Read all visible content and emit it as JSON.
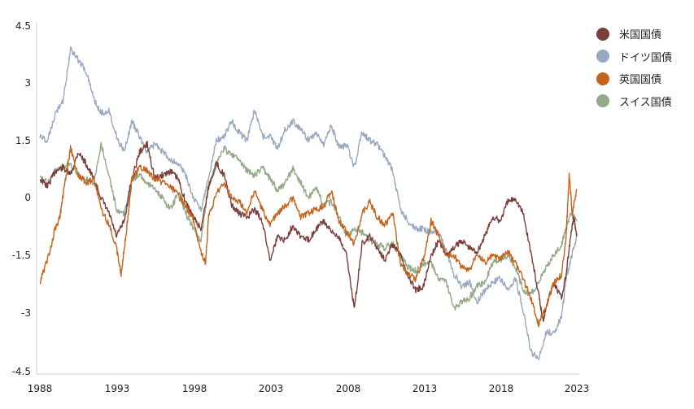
{
  "chart_data": {
    "type": "line",
    "x_ticks": [
      "1988",
      "1993",
      "1998",
      "2003",
      "2008",
      "2013",
      "2018",
      "2023"
    ],
    "y_ticks": [
      "4.5",
      "3",
      "1.5",
      "0",
      "-1.5",
      "-3",
      "-4.5"
    ],
    "xlim": [
      1988,
      2023
    ],
    "ylim": [
      -4.5,
      4.5
    ],
    "grid": false,
    "legend_position": "top-right",
    "series": [
      {
        "name": "米国国債",
        "color": "#7b3f3a",
        "points": [
          [
            1988.0,
            0.5
          ],
          [
            1988.5,
            0.3
          ],
          [
            1989.0,
            0.7
          ],
          [
            1989.5,
            0.8
          ],
          [
            1990.0,
            0.6
          ],
          [
            1990.5,
            1.2
          ],
          [
            1991.0,
            0.9
          ],
          [
            1991.5,
            0.5
          ],
          [
            1992.0,
            0.0
          ],
          [
            1992.5,
            -0.4
          ],
          [
            1993.0,
            -1.0
          ],
          [
            1993.5,
            -0.6
          ],
          [
            1994.0,
            0.5
          ],
          [
            1994.5,
            1.2
          ],
          [
            1995.0,
            1.4
          ],
          [
            1995.5,
            0.5
          ],
          [
            1996.0,
            0.6
          ],
          [
            1996.5,
            0.7
          ],
          [
            1997.0,
            0.5
          ],
          [
            1997.5,
            -0.1
          ],
          [
            1998.0,
            -0.5
          ],
          [
            1998.5,
            -0.8
          ],
          [
            1999.0,
            0.3
          ],
          [
            1999.5,
            0.9
          ],
          [
            2000.0,
            0.6
          ],
          [
            2000.5,
            -0.2
          ],
          [
            2001.0,
            -0.4
          ],
          [
            2001.5,
            -0.5
          ],
          [
            2002.0,
            -0.3
          ],
          [
            2002.5,
            -0.6
          ],
          [
            2003.0,
            -1.6
          ],
          [
            2003.5,
            -1.0
          ],
          [
            2004.0,
            -1.1
          ],
          [
            2004.5,
            -0.7
          ],
          [
            2005.0,
            -1.0
          ],
          [
            2005.5,
            -1.1
          ],
          [
            2006.0,
            -0.8
          ],
          [
            2006.5,
            -0.6
          ],
          [
            2007.0,
            -0.9
          ],
          [
            2007.5,
            -1.0
          ],
          [
            2008.0,
            -1.5
          ],
          [
            2008.5,
            -2.9
          ],
          [
            2009.0,
            -1.2
          ],
          [
            2009.5,
            -1.0
          ],
          [
            2010.0,
            -1.3
          ],
          [
            2010.5,
            -1.6
          ],
          [
            2011.0,
            -1.2
          ],
          [
            2011.5,
            -1.5
          ],
          [
            2012.0,
            -2.0
          ],
          [
            2012.5,
            -2.4
          ],
          [
            2013.0,
            -2.3
          ],
          [
            2013.5,
            -1.5
          ],
          [
            2014.0,
            -1.1
          ],
          [
            2014.5,
            -1.5
          ],
          [
            2015.0,
            -1.3
          ],
          [
            2015.5,
            -1.1
          ],
          [
            2016.0,
            -1.3
          ],
          [
            2016.5,
            -1.4
          ],
          [
            2017.0,
            -1.0
          ],
          [
            2017.5,
            -0.5
          ],
          [
            2018.0,
            -0.6
          ],
          [
            2018.5,
            -0.1
          ],
          [
            2019.0,
            0.0
          ],
          [
            2019.5,
            -0.4
          ],
          [
            2020.0,
            -1.4
          ],
          [
            2020.5,
            -2.5
          ],
          [
            2020.8,
            -3.2
          ],
          [
            2021.0,
            -2.8
          ],
          [
            2021.5,
            -2.2
          ],
          [
            2022.0,
            -2.6
          ],
          [
            2022.3,
            -2.0
          ],
          [
            2022.6,
            -1.0
          ],
          [
            2022.8,
            -0.5
          ],
          [
            2023.0,
            -1.0
          ]
        ]
      },
      {
        "name": "ドイツ国債",
        "color": "#98a9c0",
        "points": [
          [
            1988.0,
            1.6
          ],
          [
            1988.5,
            1.5
          ],
          [
            1989.0,
            2.2
          ],
          [
            1989.5,
            2.5
          ],
          [
            1990.0,
            3.9
          ],
          [
            1990.5,
            3.6
          ],
          [
            1991.0,
            3.3
          ],
          [
            1991.5,
            2.6
          ],
          [
            1992.0,
            2.2
          ],
          [
            1992.5,
            2.3
          ],
          [
            1993.0,
            1.6
          ],
          [
            1993.5,
            1.2
          ],
          [
            1994.0,
            2.0
          ],
          [
            1994.5,
            1.6
          ],
          [
            1995.0,
            1.2
          ],
          [
            1995.5,
            1.4
          ],
          [
            1996.0,
            1.2
          ],
          [
            1996.5,
            1.0
          ],
          [
            1997.0,
            0.9
          ],
          [
            1997.5,
            0.6
          ],
          [
            1998.0,
            0.0
          ],
          [
            1998.5,
            -0.3
          ],
          [
            1999.0,
            0.5
          ],
          [
            1999.5,
            1.5
          ],
          [
            2000.0,
            1.6
          ],
          [
            2000.5,
            2.0
          ],
          [
            2001.0,
            1.7
          ],
          [
            2001.5,
            1.5
          ],
          [
            2002.0,
            2.3
          ],
          [
            2002.5,
            1.6
          ],
          [
            2003.0,
            1.6
          ],
          [
            2003.5,
            1.3
          ],
          [
            2004.0,
            1.8
          ],
          [
            2004.5,
            2.0
          ],
          [
            2005.0,
            1.8
          ],
          [
            2005.5,
            1.5
          ],
          [
            2006.0,
            1.7
          ],
          [
            2006.5,
            1.4
          ],
          [
            2007.0,
            1.9
          ],
          [
            2007.5,
            1.3
          ],
          [
            2008.0,
            1.4
          ],
          [
            2008.5,
            0.8
          ],
          [
            2009.0,
            1.7
          ],
          [
            2009.5,
            1.5
          ],
          [
            2010.0,
            1.4
          ],
          [
            2010.5,
            1.1
          ],
          [
            2011.0,
            0.7
          ],
          [
            2011.5,
            -0.3
          ],
          [
            2012.0,
            -0.6
          ],
          [
            2012.5,
            -0.8
          ],
          [
            2013.0,
            -0.8
          ],
          [
            2013.5,
            -0.9
          ],
          [
            2014.0,
            -0.9
          ],
          [
            2014.5,
            -1.4
          ],
          [
            2015.0,
            -2.0
          ],
          [
            2015.5,
            -2.3
          ],
          [
            2016.0,
            -2.2
          ],
          [
            2016.5,
            -2.7
          ],
          [
            2017.0,
            -2.4
          ],
          [
            2017.5,
            -2.2
          ],
          [
            2018.0,
            -2.1
          ],
          [
            2018.5,
            -2.4
          ],
          [
            2019.0,
            -2.1
          ],
          [
            2019.5,
            -2.9
          ],
          [
            2020.0,
            -4.0
          ],
          [
            2020.5,
            -4.2
          ],
          [
            2021.0,
            -3.5
          ],
          [
            2021.5,
            -3.5
          ],
          [
            2022.0,
            -3.1
          ],
          [
            2022.3,
            -2.1
          ],
          [
            2022.6,
            -1.6
          ],
          [
            2023.0,
            -1.0
          ]
        ]
      },
      {
        "name": "英国国債",
        "color": "#c5631c",
        "points": [
          [
            1988.0,
            -2.2
          ],
          [
            1988.5,
            -1.6
          ],
          [
            1989.0,
            -0.8
          ],
          [
            1989.3,
            -0.5
          ],
          [
            1989.6,
            0.3
          ],
          [
            1990.0,
            1.3
          ],
          [
            1990.5,
            0.6
          ],
          [
            1991.0,
            0.4
          ],
          [
            1991.5,
            0.5
          ],
          [
            1992.0,
            -0.3
          ],
          [
            1992.5,
            -0.7
          ],
          [
            1993.0,
            -1.3
          ],
          [
            1993.3,
            -2.0
          ],
          [
            1993.6,
            -1.0
          ],
          [
            1994.0,
            0.5
          ],
          [
            1994.5,
            0.8
          ],
          [
            1995.0,
            0.7
          ],
          [
            1995.5,
            0.5
          ],
          [
            1996.0,
            0.4
          ],
          [
            1996.5,
            0.3
          ],
          [
            1997.0,
            0.1
          ],
          [
            1997.5,
            -0.2
          ],
          [
            1998.0,
            -0.6
          ],
          [
            1998.5,
            -1.4
          ],
          [
            1998.8,
            -1.7
          ],
          [
            1999.0,
            -0.5
          ],
          [
            1999.5,
            0.1
          ],
          [
            2000.0,
            0.4
          ],
          [
            2000.5,
            0.0
          ],
          [
            2001.0,
            -0.1
          ],
          [
            2001.5,
            -0.4
          ],
          [
            2002.0,
            0.2
          ],
          [
            2002.5,
            -0.3
          ],
          [
            2003.0,
            -0.7
          ],
          [
            2003.5,
            -0.4
          ],
          [
            2004.0,
            -0.2
          ],
          [
            2004.5,
            0.0
          ],
          [
            2005.0,
            -0.5
          ],
          [
            2005.5,
            -0.4
          ],
          [
            2006.0,
            -0.3
          ],
          [
            2006.5,
            -0.2
          ],
          [
            2007.0,
            0.2
          ],
          [
            2007.5,
            -0.6
          ],
          [
            2008.0,
            -0.9
          ],
          [
            2008.5,
            -1.2
          ],
          [
            2009.0,
            -0.4
          ],
          [
            2009.5,
            -0.1
          ],
          [
            2010.0,
            -0.5
          ],
          [
            2010.5,
            -0.7
          ],
          [
            2011.0,
            -0.4
          ],
          [
            2011.5,
            -1.7
          ],
          [
            2012.0,
            -2.0
          ],
          [
            2012.5,
            -2.1
          ],
          [
            2013.0,
            -1.6
          ],
          [
            2013.5,
            -0.6
          ],
          [
            2014.0,
            -1.0
          ],
          [
            2014.5,
            -1.5
          ],
          [
            2015.0,
            -1.5
          ],
          [
            2015.5,
            -1.8
          ],
          [
            2016.0,
            -1.9
          ],
          [
            2016.5,
            -1.4
          ],
          [
            2017.0,
            -1.7
          ],
          [
            2017.5,
            -1.5
          ],
          [
            2018.0,
            -1.6
          ],
          [
            2018.5,
            -1.4
          ],
          [
            2019.0,
            -1.7
          ],
          [
            2019.5,
            -2.1
          ],
          [
            2020.0,
            -2.6
          ],
          [
            2020.5,
            -3.3
          ],
          [
            2021.0,
            -2.8
          ],
          [
            2021.5,
            -2.2
          ],
          [
            2022.0,
            -2.0
          ],
          [
            2022.3,
            -1.0
          ],
          [
            2022.5,
            0.6
          ],
          [
            2022.7,
            -0.4
          ],
          [
            2023.0,
            0.2
          ]
        ]
      },
      {
        "name": "スイス国債",
        "color": "#93a987",
        "points": [
          [
            1988.0,
            0.6
          ],
          [
            1988.5,
            0.4
          ],
          [
            1989.0,
            0.7
          ],
          [
            1989.5,
            0.8
          ],
          [
            1990.0,
            0.9
          ],
          [
            1990.5,
            0.6
          ],
          [
            1991.0,
            0.5
          ],
          [
            1991.5,
            0.4
          ],
          [
            1992.0,
            1.4
          ],
          [
            1992.5,
            0.6
          ],
          [
            1993.0,
            -0.3
          ],
          [
            1993.5,
            -0.4
          ],
          [
            1994.0,
            0.5
          ],
          [
            1994.5,
            0.6
          ],
          [
            1995.0,
            0.4
          ],
          [
            1995.5,
            0.2
          ],
          [
            1996.0,
            0.0
          ],
          [
            1996.5,
            -0.3
          ],
          [
            1997.0,
            0.1
          ],
          [
            1997.5,
            -0.4
          ],
          [
            1998.0,
            -0.8
          ],
          [
            1998.5,
            -1.1
          ],
          [
            1999.0,
            0.3
          ],
          [
            1999.5,
            0.9
          ],
          [
            2000.0,
            1.3
          ],
          [
            2000.5,
            1.1
          ],
          [
            2001.0,
            1.0
          ],
          [
            2001.5,
            0.7
          ],
          [
            2002.0,
            0.6
          ],
          [
            2002.5,
            0.8
          ],
          [
            2003.0,
            0.5
          ],
          [
            2003.5,
            0.2
          ],
          [
            2004.0,
            0.4
          ],
          [
            2004.5,
            0.8
          ],
          [
            2005.0,
            0.4
          ],
          [
            2005.5,
            0.0
          ],
          [
            2006.0,
            0.3
          ],
          [
            2006.5,
            -0.2
          ],
          [
            2007.0,
            -0.1
          ],
          [
            2007.5,
            -0.5
          ],
          [
            2008.0,
            -1.0
          ],
          [
            2008.5,
            -0.8
          ],
          [
            2009.0,
            -0.9
          ],
          [
            2009.5,
            -1.1
          ],
          [
            2010.0,
            -1.2
          ],
          [
            2010.5,
            -1.3
          ],
          [
            2011.0,
            -1.2
          ],
          [
            2011.5,
            -1.5
          ],
          [
            2012.0,
            -1.8
          ],
          [
            2012.5,
            -1.9
          ],
          [
            2013.0,
            -1.7
          ],
          [
            2013.5,
            -1.7
          ],
          [
            2014.0,
            -2.1
          ],
          [
            2014.5,
            -2.2
          ],
          [
            2015.0,
            -2.9
          ],
          [
            2015.5,
            -2.7
          ],
          [
            2016.0,
            -2.6
          ],
          [
            2016.5,
            -2.3
          ],
          [
            2017.0,
            -2.2
          ],
          [
            2017.5,
            -1.7
          ],
          [
            2018.0,
            -1.6
          ],
          [
            2018.5,
            -1.5
          ],
          [
            2019.0,
            -1.8
          ],
          [
            2019.5,
            -2.4
          ],
          [
            2020.0,
            -2.5
          ],
          [
            2020.5,
            -2.2
          ],
          [
            2021.0,
            -1.8
          ],
          [
            2021.5,
            -1.5
          ],
          [
            2022.0,
            -1.2
          ],
          [
            2022.3,
            -0.8
          ],
          [
            2022.6,
            -0.4
          ],
          [
            2023.0,
            -0.6
          ]
        ]
      }
    ]
  }
}
